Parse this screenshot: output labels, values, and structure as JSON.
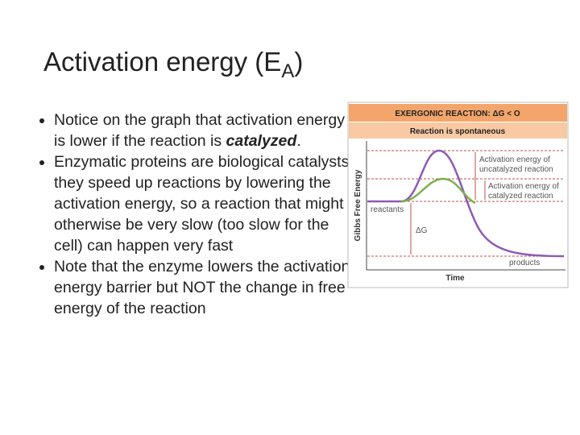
{
  "title": {
    "text": "Activation energy (E",
    "subscript": "A",
    "close": ")"
  },
  "bullets": [
    {
      "before": "Notice on the graph that activation energy is lower if the reaction is ",
      "emphasis": "catalyzed",
      "after": "."
    },
    {
      "text": "Enzymatic proteins are biological catalysts: they speed up reactions by lowering the activation energy, so a reaction that might otherwise be very slow (too slow for the cell) can happen very fast"
    },
    {
      "text": "Note that the enzyme lowers the activation energy barrier but NOT the change in free energy of the reaction"
    }
  ],
  "figure": {
    "header": "EXERGONIC REACTION: ΔG < O",
    "subheader": "Reaction is spontaneous",
    "y_label": "Gibbs Free Energy",
    "x_label": "Time",
    "uncatalyzed_label": [
      "Activation energy of",
      "uncatalyzed reaction"
    ],
    "catalyzed_label": [
      "Activation energy of",
      "catalyzed reaction"
    ],
    "reactants": "reactants",
    "delta_g": "ΔG",
    "products": "products"
  }
}
